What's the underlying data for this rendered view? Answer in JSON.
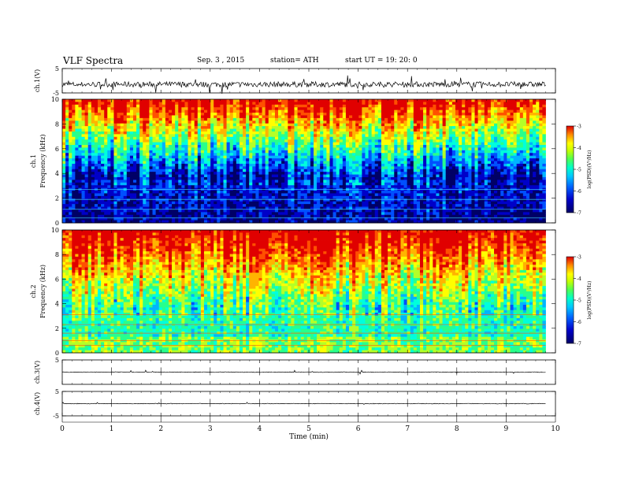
{
  "header": {
    "title": "VLF  Spectra",
    "date": "Sep. 3  , 2015",
    "station": "station= ATH",
    "start": "start  UT =    19: 20: 0"
  },
  "chart_data": [
    {
      "type": "line",
      "id": "waveform-ch1",
      "ylabel": "ch.1(V)",
      "ylim": [
        -5,
        5
      ],
      "yticks": [
        "5",
        "-5"
      ],
      "baseline": -1.5,
      "color": "#000000"
    },
    {
      "type": "heatmap",
      "id": "spectrogram-ch1",
      "ylabel": "ch.1\nFrequency (kHz)",
      "ylabel_ch": "ch.1",
      "ylabel_freq": "Frequency (kHz)",
      "ylim": [
        0,
        10
      ],
      "yticks": [
        "0",
        "2",
        "4",
        "6",
        "8",
        "10"
      ],
      "colorbar": {
        "label": "log(PSD)(V²/Hz)",
        "range": [
          -7,
          -3
        ],
        "ticks": [
          "-3",
          "-4",
          "-5",
          "-6",
          "-7"
        ]
      }
    },
    {
      "type": "heatmap",
      "id": "spectrogram-ch2",
      "ylabel_ch": "ch.2",
      "ylabel_freq": "Frequency (kHz)",
      "ylim": [
        0,
        10
      ],
      "yticks": [
        "0",
        "2",
        "4",
        "6",
        "8",
        "10"
      ],
      "colorbar": {
        "label": "log(PSD)(V²/Hz)",
        "range": [
          -7,
          -3
        ],
        "ticks": [
          "-3",
          "-4",
          "-5",
          "-6",
          "-7"
        ]
      }
    },
    {
      "type": "line",
      "id": "waveform-ch3",
      "ylabel": "ch.3(V)",
      "ylim": [
        -5,
        5
      ],
      "yticks": [
        "5"
      ],
      "baseline": 0,
      "color": "#000000"
    },
    {
      "type": "line",
      "id": "waveform-ch4",
      "ylabel": "ch.4(V)",
      "ylim": [
        -5,
        5
      ],
      "yticks": [
        "5",
        "-5"
      ],
      "baseline": 0,
      "color": "#000000"
    }
  ],
  "x_axis": {
    "label": "Time  (min)",
    "range": [
      0,
      10
    ],
    "ticks": [
      "0",
      "1",
      "2",
      "3",
      "4",
      "5",
      "6",
      "7",
      "8",
      "9",
      "10"
    ],
    "data_end": 9.8
  },
  "colormap": [
    "#000066",
    "#0000c8",
    "#0050ff",
    "#00b4ff",
    "#00ffdc",
    "#28ff8c",
    "#b4ff28",
    "#ffff00",
    "#ffb400",
    "#ff5000",
    "#e00000"
  ]
}
